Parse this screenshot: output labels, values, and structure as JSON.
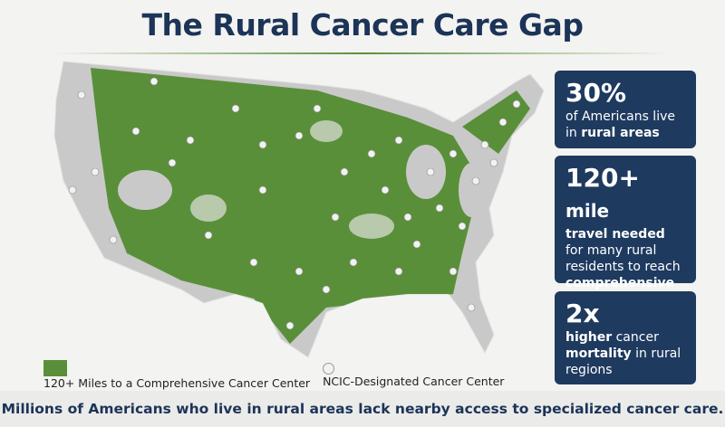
{
  "header": {
    "title": "The Rural Cancer Care Gap"
  },
  "legend": {
    "items": [
      {
        "label": "120+ Miles to a Comprehensive Cancer Center",
        "color": "#5a8f3a"
      },
      {
        "label": "NCIC-Designated Cancer Center",
        "color": "#f2f2f2"
      }
    ]
  },
  "stats": [
    {
      "number": "30%",
      "parts": [
        {
          "text": "of Americans live in",
          "bold": false
        },
        {
          "text": "rural areas",
          "bold": true
        }
      ]
    },
    {
      "number": "120+",
      "unit": "mile",
      "parts": [
        {
          "text": "travel needed",
          "bold": true
        },
        {
          "text": "for many rural residents to reach",
          "bold": false
        },
        {
          "text": "comprehensive cancer center",
          "bold": true
        }
      ]
    },
    {
      "number": "2x",
      "parts": [
        {
          "text": "higher",
          "bold": true
        },
        {
          "text": "cancer",
          "bold": false
        },
        {
          "text": "mortality",
          "bold": true
        },
        {
          "text": "in rural regions",
          "bold": false
        }
      ]
    }
  ],
  "footer": {
    "text": "Millions of Americans who live in rural areas lack nearby access to specialized cancer care."
  }
}
